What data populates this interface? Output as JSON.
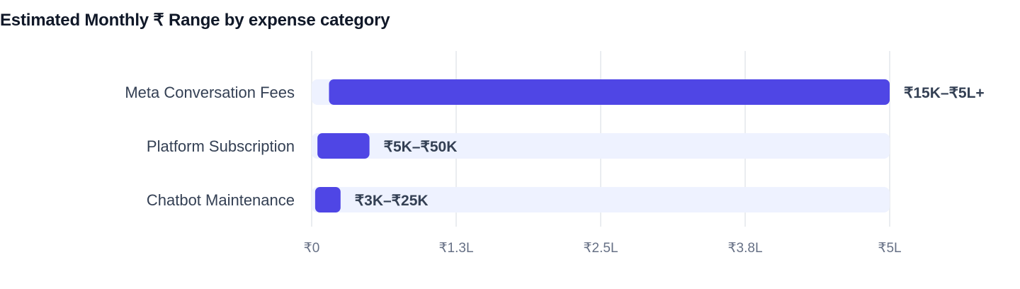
{
  "chart_data": {
    "type": "bar",
    "orientation": "horizontal",
    "title": "Estimated Monthly ₹ Range by expense category",
    "xlabel": "",
    "ylabel": "",
    "categories": [
      "Meta Conversation Fees",
      "Platform Subscription",
      "Chatbot Maintenance"
    ],
    "ranges": [
      {
        "low": 15000,
        "high": 500000,
        "label": "₹15K–₹5L+"
      },
      {
        "low": 5000,
        "high": 50000,
        "label": "₹5K–₹50K"
      },
      {
        "low": 3000,
        "high": 25000,
        "label": "₹3K–₹25K"
      }
    ],
    "xlim": [
      0,
      500000
    ],
    "xticks": [
      0,
      125000,
      250000,
      375000,
      500000
    ],
    "xtick_labels": [
      "₹0",
      "₹1.3L",
      "₹2.5L",
      "₹3.8L",
      "₹5L"
    ],
    "grid": true,
    "legend": "none",
    "colors": {
      "bar": "#4f46e5",
      "track": "#eef2ff",
      "grid": "#e4e7ec"
    }
  }
}
